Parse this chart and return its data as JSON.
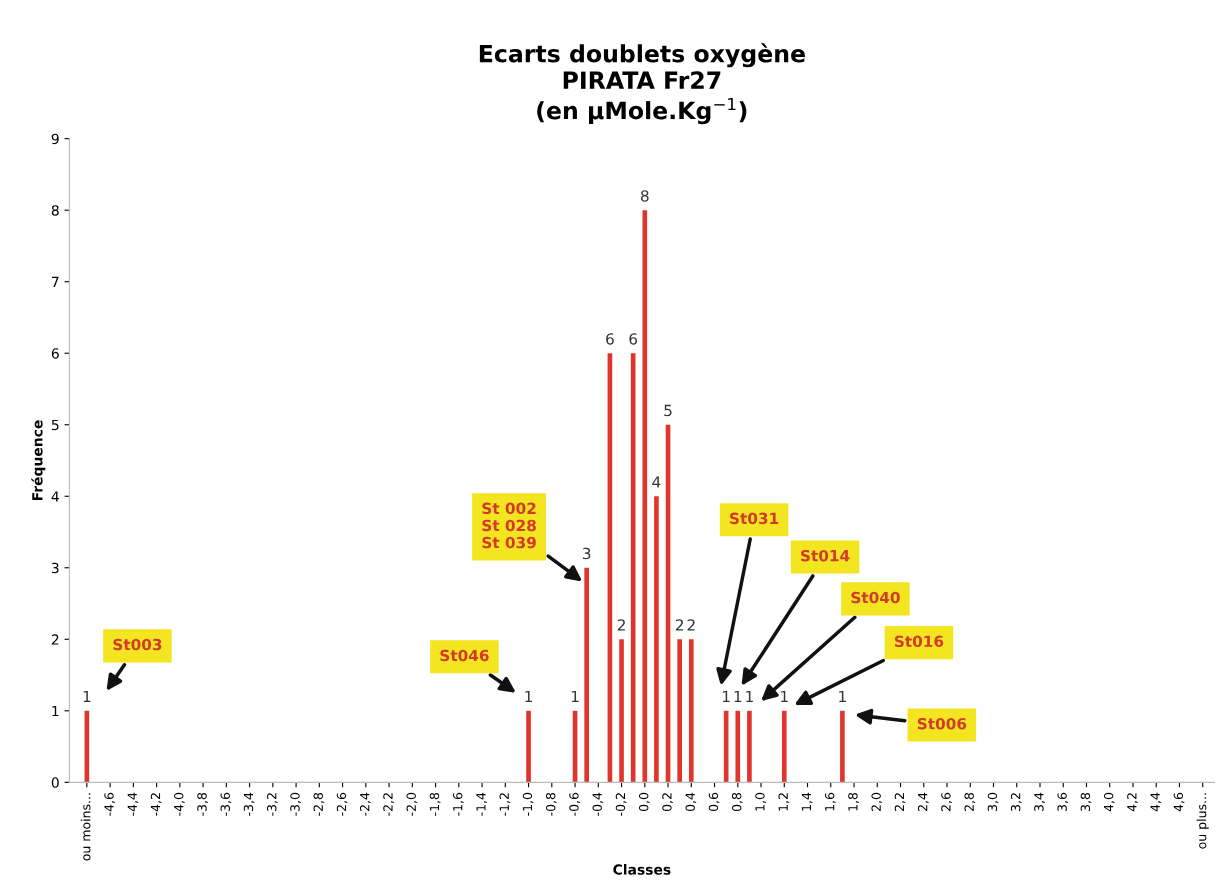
{
  "chart_data": {
    "type": "bar",
    "title": "Ecarts doublets oxygène\nPIRATA Fr27\n(en µMole.Kg$^{−1}$)",
    "xlabel": "Classes",
    "ylabel": "Fréquence",
    "x": [
      -4.8,
      -1.0,
      -0.6,
      -0.5,
      -0.3,
      -0.2,
      -0.1,
      0.0,
      0.1,
      0.2,
      0.3,
      0.4,
      0.7,
      0.8,
      0.9,
      1.2,
      1.7
    ],
    "values": [
      1,
      1,
      1,
      3,
      6,
      2,
      6,
      8,
      4,
      5,
      2,
      2,
      1,
      1,
      1,
      1,
      1
    ],
    "color": "#e0352b",
    "data_labels": true,
    "grid": false,
    "legend": false,
    "xlim": [
      -4.95,
      4.9
    ],
    "ylim": [
      0,
      9
    ],
    "yticks": [
      0,
      1,
      2,
      3,
      4,
      5,
      6,
      7,
      8,
      9
    ],
    "xticks": [
      {
        "value": -4.8,
        "label": "ou moins..."
      },
      {
        "value": -4.6,
        "label": "-4,6"
      },
      {
        "value": -4.4,
        "label": "-4,4"
      },
      {
        "value": -4.2,
        "label": "-4,2"
      },
      {
        "value": -4.0,
        "label": "-4,0"
      },
      {
        "value": -3.8,
        "label": "-3,8"
      },
      {
        "value": -3.6,
        "label": "-3,6"
      },
      {
        "value": -3.4,
        "label": "-3,4"
      },
      {
        "value": -3.2,
        "label": "-3,2"
      },
      {
        "value": -3.0,
        "label": "-3,0"
      },
      {
        "value": -2.8,
        "label": "-2,8"
      },
      {
        "value": -2.6,
        "label": "-2,6"
      },
      {
        "value": -2.4,
        "label": "-2,4"
      },
      {
        "value": -2.2,
        "label": "-2,2"
      },
      {
        "value": -2.0,
        "label": "-2,0"
      },
      {
        "value": -1.8,
        "label": "-1,8"
      },
      {
        "value": -1.6,
        "label": "-1,6"
      },
      {
        "value": -1.4,
        "label": "-1,4"
      },
      {
        "value": -1.2,
        "label": "-1,2"
      },
      {
        "value": -1.0,
        "label": "-1,0"
      },
      {
        "value": -0.8,
        "label": "-0,8"
      },
      {
        "value": -0.6,
        "label": "-0,6"
      },
      {
        "value": -0.4,
        "label": "-0,4"
      },
      {
        "value": -0.2,
        "label": "-0,2"
      },
      {
        "value": 0.0,
        "label": "0,0"
      },
      {
        "value": 0.2,
        "label": "0,2"
      },
      {
        "value": 0.4,
        "label": "0,4"
      },
      {
        "value": 0.6,
        "label": "0,6"
      },
      {
        "value": 0.8,
        "label": "0,8"
      },
      {
        "value": 1.0,
        "label": "1,0"
      },
      {
        "value": 1.2,
        "label": "1,2"
      },
      {
        "value": 1.4,
        "label": "1,4"
      },
      {
        "value": 1.6,
        "label": "1,6"
      },
      {
        "value": 1.8,
        "label": "1,8"
      },
      {
        "value": 2.0,
        "label": "2,0"
      },
      {
        "value": 2.2,
        "label": "2,2"
      },
      {
        "value": 2.4,
        "label": "2,4"
      },
      {
        "value": 2.6,
        "label": "2,6"
      },
      {
        "value": 2.8,
        "label": "2,8"
      },
      {
        "value": 3.0,
        "label": "3,0"
      },
      {
        "value": 3.2,
        "label": "3,2"
      },
      {
        "value": 3.4,
        "label": "3,4"
      },
      {
        "value": 3.6,
        "label": "3,6"
      },
      {
        "value": 3.8,
        "label": "3,8"
      },
      {
        "value": 4.0,
        "label": "4,0"
      },
      {
        "value": 4.2,
        "label": "4,2"
      },
      {
        "value": 4.4,
        "label": "4,4"
      },
      {
        "value": 4.6,
        "label": "4,6"
      },
      {
        "value": 4.8,
        "label": "ou plus..."
      }
    ],
    "annotations": [
      "St003",
      "St046",
      "St 002\nSt 028\nSt 039",
      "St031",
      "St014",
      "St040",
      "St016",
      "St006"
    ]
  }
}
